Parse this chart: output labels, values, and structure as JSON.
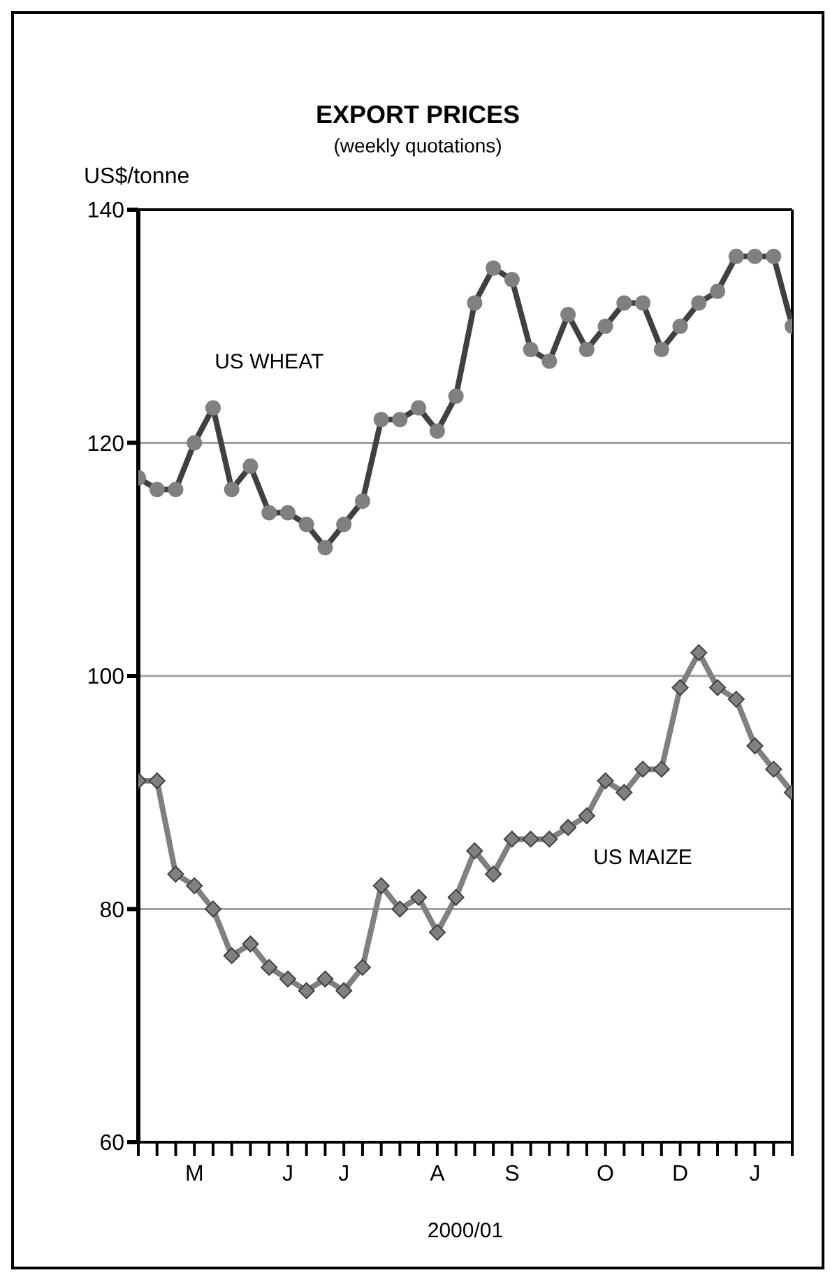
{
  "chart_data": {
    "type": "line",
    "title": "EXPORT PRICES",
    "subtitle": "(weekly quotations)",
    "ylabel": "US$/tonne",
    "xlabel": "2000/01",
    "categories": [
      null,
      null,
      null,
      "M",
      null,
      null,
      null,
      null,
      "J",
      null,
      null,
      "J",
      null,
      null,
      null,
      null,
      "A",
      null,
      null,
      null,
      "S",
      null,
      null,
      null,
      null,
      "O",
      null,
      null,
      null,
      "D",
      null,
      null,
      null,
      "J",
      null,
      null
    ],
    "series": [
      {
        "name": "US WHEAT",
        "color": "#404040",
        "marker": "circle",
        "values": [
          117,
          116,
          116,
          120,
          123,
          116,
          118,
          114,
          114,
          113,
          111,
          113,
          115,
          122,
          122,
          123,
          121,
          124,
          132,
          135,
          134,
          128,
          127,
          131,
          128,
          130,
          132,
          132,
          128,
          130,
          132,
          133,
          136,
          136,
          136,
          130
        ]
      },
      {
        "name": "US MAIZE",
        "color": "#808080",
        "marker": "diamond",
        "values": [
          91,
          91,
          83,
          82,
          80,
          76,
          77,
          75,
          74,
          73,
          74,
          73,
          75,
          82,
          80,
          81,
          78,
          81,
          85,
          83,
          86,
          86,
          86,
          87,
          88,
          91,
          90,
          92,
          92,
          99,
          102,
          99,
          98,
          94,
          92,
          90
        ]
      }
    ],
    "ylim": [
      60,
      140
    ],
    "yticks": [
      60,
      80,
      100,
      120,
      140
    ],
    "grid": "y"
  }
}
